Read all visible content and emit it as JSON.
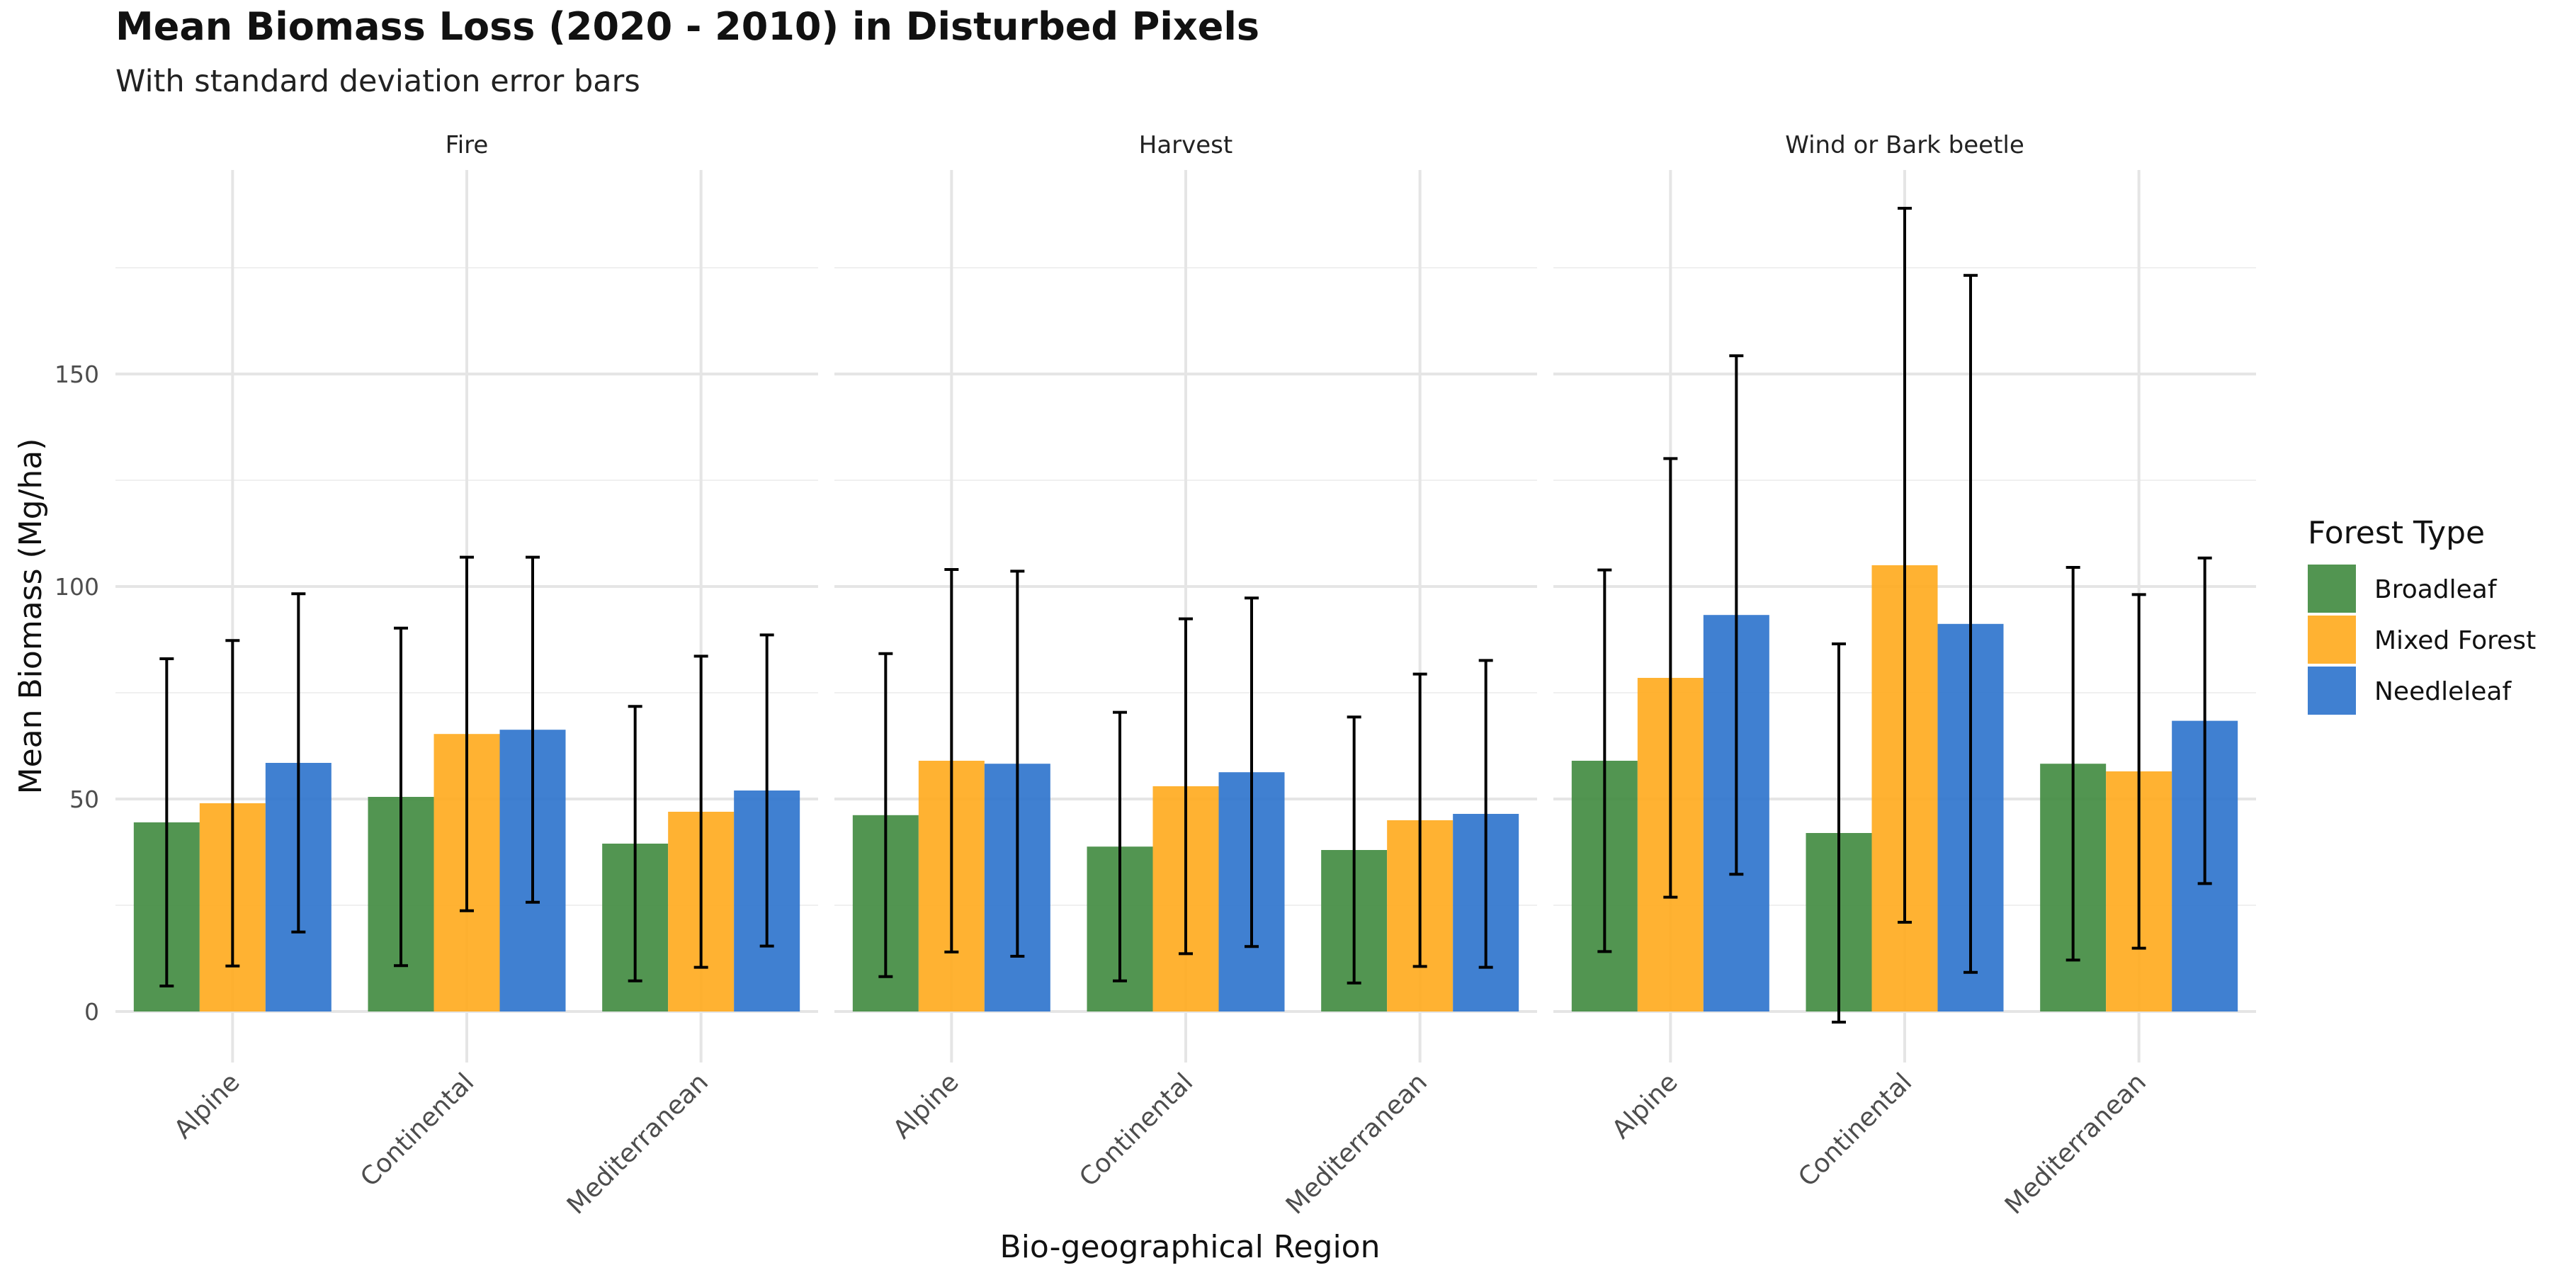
{
  "chart_data": {
    "type": "bar",
    "title": "Mean Biomass Loss (2020 - 2010) in Disturbed Pixels",
    "subtitle": "With standard deviation error bars",
    "xlabel": "Bio-geographical Region",
    "ylabel": "Mean Biomass (Mg/ha)",
    "ylim": [
      -12,
      198
    ],
    "yticks": [
      0,
      50,
      100,
      150
    ],
    "grid": true,
    "categories": [
      "Alpine",
      "Continental",
      "Mediterranean"
    ],
    "legend": {
      "title": "Forest Type",
      "position": "right",
      "items": [
        {
          "label": "Broadleaf",
          "color": "#3F8A3E"
        },
        {
          "label": "Mixed Forest",
          "color": "#FFAA1C"
        },
        {
          "label": "Needleleaf",
          "color": "#2B72CC"
        }
      ]
    },
    "facets": [
      {
        "label": "Fire",
        "series": [
          {
            "name": "Broadleaf",
            "values": [
              44.5,
              50.5,
              39.5
            ],
            "sd": [
              38.5,
              39.7,
              32.3
            ]
          },
          {
            "name": "Mixed Forest",
            "values": [
              49,
              65.3,
              47
            ],
            "sd": [
              38.3,
              41.6,
              36.6
            ]
          },
          {
            "name": "Needleleaf",
            "values": [
              58.5,
              66.3,
              52
            ],
            "sd": [
              39.8,
              40.6,
              36.6
            ]
          }
        ]
      },
      {
        "label": "Harvest",
        "series": [
          {
            "name": "Broadleaf",
            "values": [
              46.2,
              38.8,
              38
            ],
            "sd": [
              38,
              31.6,
              31.3
            ]
          },
          {
            "name": "Mixed Forest",
            "values": [
              59,
              53,
              45
            ],
            "sd": [
              45,
              39.4,
              34.4
            ]
          },
          {
            "name": "Needleleaf",
            "values": [
              58.3,
              56.3,
              46.5
            ],
            "sd": [
              45.3,
              41,
              36.1
            ]
          }
        ]
      },
      {
        "label": "Wind or Bark beetle",
        "series": [
          {
            "name": "Broadleaf",
            "values": [
              59,
              42,
              58.3
            ],
            "sd": [
              44.9,
              44.5,
              46.2
            ]
          },
          {
            "name": "Mixed Forest",
            "values": [
              78.5,
              105,
              56.5
            ],
            "sd": [
              51.6,
              84,
              41.6
            ]
          },
          {
            "name": "Needleleaf",
            "values": [
              93.3,
              91.2,
              68.4
            ],
            "sd": [
              61,
              82,
              38.3
            ]
          }
        ]
      }
    ]
  }
}
